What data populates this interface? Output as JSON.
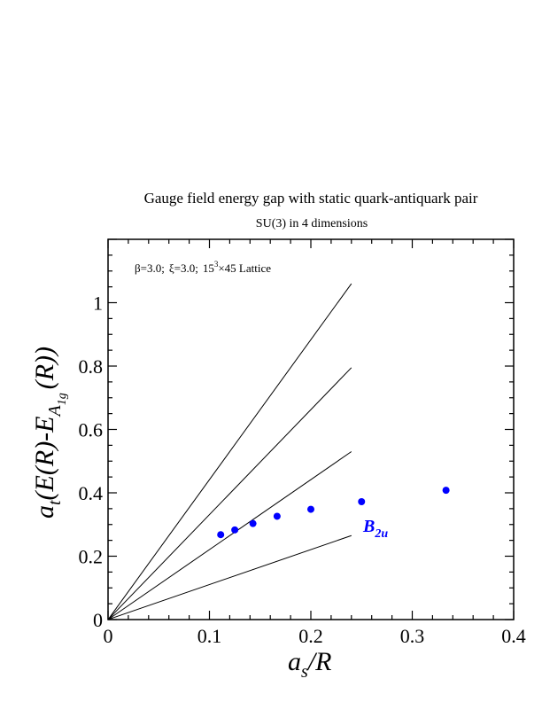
{
  "chart_data": {
    "type": "scatter",
    "title": "Gauge field energy gap with static quark-antiquark pair",
    "subtitle": "SU(3) in 4 dimensions",
    "annotation": {
      "beta": "β=3.0;",
      "xi": "ξ=3.0;",
      "lattice_base": "15",
      "lattice_exp": "3",
      "lattice_rest": "×45 Lattice"
    },
    "xlabel": {
      "a": "a",
      "s": "s",
      "rest": "/R"
    },
    "ylabel": {
      "a": "a",
      "t": "t",
      "mid": "(E(R)-E",
      "A": "A",
      "sub": "1g",
      "end": "(R))"
    },
    "xlim": [
      0,
      0.4
    ],
    "ylim": [
      0,
      1.2
    ],
    "x_ticks": [
      0,
      0.1,
      0.2,
      0.3,
      0.4
    ],
    "x_tick_labels": [
      "0",
      "0.1",
      "0.2",
      "0.3",
      "0.4"
    ],
    "y_ticks": [
      0,
      0.2,
      0.4,
      0.6,
      0.8,
      1.0
    ],
    "y_tick_labels": [
      "0",
      "0.2",
      "0.4",
      "0.6",
      "0.8",
      "1"
    ],
    "series": [
      {
        "name": "B2u",
        "name_main": "B",
        "name_sub": "2u",
        "color": "#0000ff",
        "x": [
          0.1111,
          0.125,
          0.1429,
          0.1667,
          0.2,
          0.25,
          0.3333
        ],
        "y": [
          0.268,
          0.283,
          0.303,
          0.326,
          0.348,
          0.372,
          0.408
        ]
      }
    ],
    "reference_lines": [
      {
        "x": [
          0,
          0.24
        ],
        "y": [
          0,
          0.265
        ]
      },
      {
        "x": [
          0,
          0.24
        ],
        "y": [
          0,
          0.53
        ]
      },
      {
        "x": [
          0,
          0.24
        ],
        "y": [
          0,
          0.795
        ]
      },
      {
        "x": [
          0,
          0.24
        ],
        "y": [
          0,
          1.06
        ]
      }
    ],
    "grid": false
  }
}
